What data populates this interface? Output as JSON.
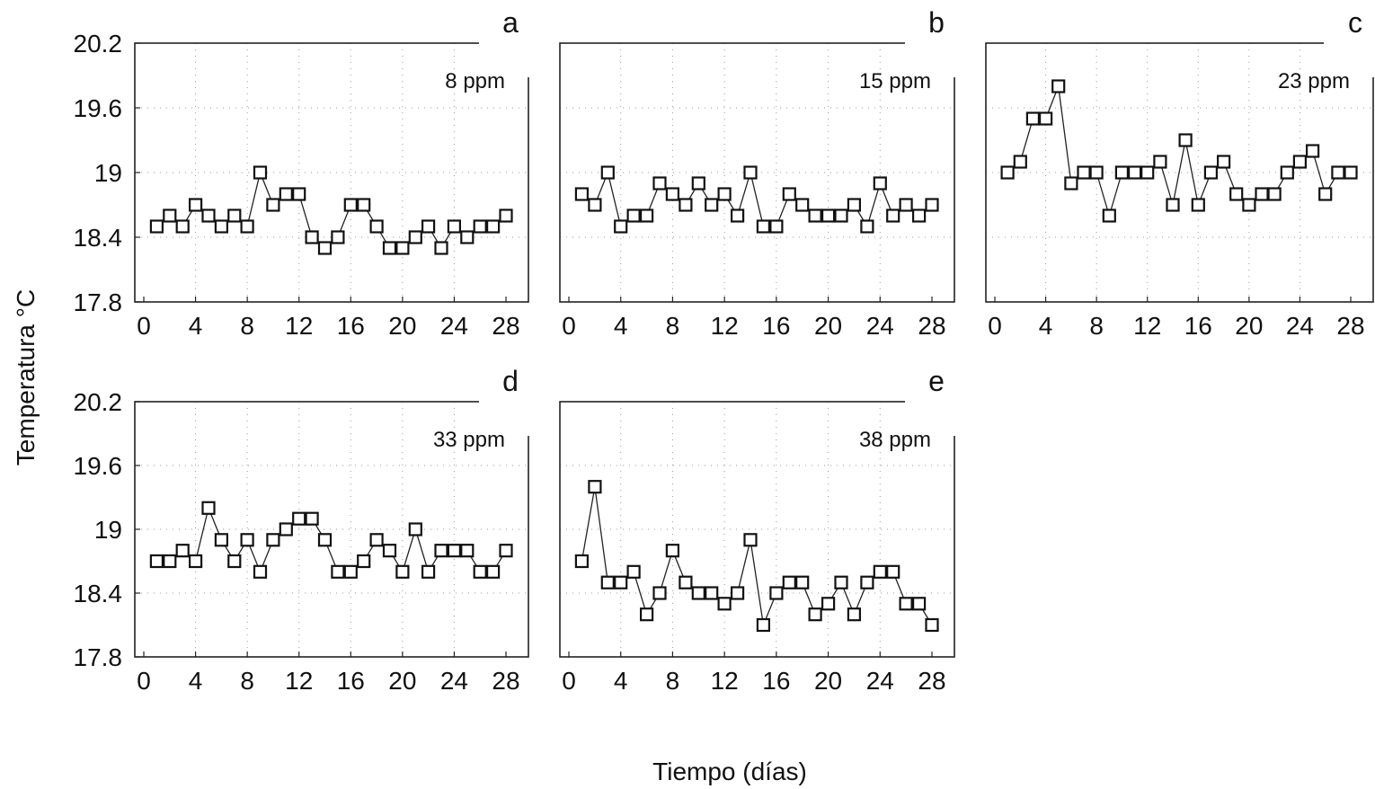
{
  "chart_data": {
    "shared": {
      "ylabel": "Temperatura °C",
      "xlabel": "Tiempo (días)",
      "ylim": [
        17.8,
        20.2
      ],
      "xlim": [
        0,
        28
      ],
      "yticks": [
        "17.8",
        "18.4",
        "19",
        "19.6",
        "20.2"
      ],
      "xticks": [
        "0",
        "4",
        "8",
        "12",
        "16",
        "20",
        "24",
        "28"
      ],
      "grid": true,
      "marker": "open-square"
    },
    "panels": [
      {
        "type": "line",
        "letter": "a",
        "annotation": "8 ppm",
        "x": [
          1,
          2,
          3,
          4,
          5,
          6,
          7,
          8,
          9,
          10,
          11,
          12,
          13,
          14,
          15,
          16,
          17,
          18,
          19,
          20,
          21,
          22,
          23,
          24,
          25,
          26,
          27,
          28
        ],
        "values": [
          18.5,
          18.6,
          18.5,
          18.7,
          18.6,
          18.5,
          18.6,
          18.5,
          19.0,
          18.7,
          18.8,
          18.8,
          18.4,
          18.3,
          18.4,
          18.7,
          18.7,
          18.5,
          18.3,
          18.3,
          18.4,
          18.5,
          18.3,
          18.5,
          18.4,
          18.5,
          18.5,
          18.6
        ]
      },
      {
        "type": "line",
        "letter": "b",
        "annotation": "15 ppm",
        "x": [
          1,
          2,
          3,
          4,
          5,
          6,
          7,
          8,
          9,
          10,
          11,
          12,
          13,
          14,
          15,
          16,
          17,
          18,
          19,
          20,
          21,
          22,
          23,
          24,
          25,
          26,
          27,
          28
        ],
        "values": [
          18.8,
          18.7,
          19.0,
          18.5,
          18.6,
          18.6,
          18.9,
          18.8,
          18.7,
          18.9,
          18.7,
          18.8,
          18.6,
          19.0,
          18.5,
          18.5,
          18.8,
          18.7,
          18.6,
          18.6,
          18.6,
          18.7,
          18.5,
          18.9,
          18.6,
          18.7,
          18.6,
          18.7
        ]
      },
      {
        "type": "line",
        "letter": "c",
        "annotation": "23 ppm",
        "x": [
          1,
          2,
          3,
          4,
          5,
          6,
          7,
          8,
          9,
          10,
          11,
          12,
          13,
          14,
          15,
          16,
          17,
          18,
          19,
          20,
          21,
          22,
          23,
          24,
          25,
          26,
          27,
          28
        ],
        "values": [
          19.0,
          19.1,
          19.5,
          19.5,
          19.8,
          18.9,
          19.0,
          19.0,
          18.6,
          19.0,
          19.0,
          19.0,
          19.1,
          18.7,
          19.3,
          18.7,
          19.0,
          19.1,
          18.8,
          18.7,
          18.8,
          18.8,
          19.0,
          19.1,
          19.2,
          18.8,
          19.0,
          19.0
        ]
      },
      {
        "type": "line",
        "letter": "d",
        "annotation": "33 ppm",
        "x": [
          1,
          2,
          3,
          4,
          5,
          6,
          7,
          8,
          9,
          10,
          11,
          12,
          13,
          14,
          15,
          16,
          17,
          18,
          19,
          20,
          21,
          22,
          23,
          24,
          25,
          26,
          27,
          28
        ],
        "values": [
          18.7,
          18.7,
          18.8,
          18.7,
          19.2,
          18.9,
          18.7,
          18.9,
          18.6,
          18.9,
          19.0,
          19.1,
          19.1,
          18.9,
          18.6,
          18.6,
          18.7,
          18.9,
          18.8,
          18.6,
          19.0,
          18.6,
          18.8,
          18.8,
          18.8,
          18.6,
          18.6,
          18.8
        ]
      },
      {
        "type": "line",
        "letter": "e",
        "annotation": "38 ppm",
        "x": [
          1,
          2,
          3,
          4,
          5,
          6,
          7,
          8,
          9,
          10,
          11,
          12,
          13,
          14,
          15,
          16,
          17,
          18,
          19,
          20,
          21,
          22,
          23,
          24,
          25,
          26,
          27,
          28
        ],
        "values": [
          18.7,
          19.4,
          18.5,
          18.5,
          18.6,
          18.2,
          18.4,
          18.8,
          18.5,
          18.4,
          18.4,
          18.3,
          18.4,
          18.9,
          18.1,
          18.4,
          18.5,
          18.5,
          18.2,
          18.3,
          18.5,
          18.2,
          18.5,
          18.6,
          18.6,
          18.3,
          18.3,
          18.1
        ]
      }
    ]
  }
}
